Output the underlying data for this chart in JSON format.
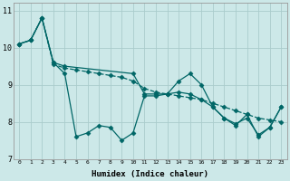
{
  "title": "",
  "xlabel": "Humidex (Indice chaleur)",
  "ylabel": "",
  "background_color": "#cce8e8",
  "grid_color": "#aacccc",
  "line_color": "#006666",
  "xlim": [
    -0.5,
    23.5
  ],
  "ylim": [
    7,
    11.2
  ],
  "xticks": [
    0,
    1,
    2,
    3,
    4,
    5,
    6,
    7,
    8,
    9,
    10,
    11,
    12,
    13,
    14,
    15,
    16,
    17,
    18,
    19,
    20,
    21,
    22,
    23
  ],
  "yticks": [
    7,
    8,
    9,
    10,
    11
  ],
  "line1_x": [
    0,
    1,
    2,
    3,
    4,
    5,
    6,
    7,
    8,
    9,
    10,
    11,
    12,
    13,
    14,
    15,
    16,
    17,
    18,
    19,
    20,
    21,
    22,
    23
  ],
  "line1_y": [
    10.1,
    10.2,
    10.8,
    9.6,
    9.3,
    7.6,
    7.7,
    7.9,
    7.85,
    7.5,
    7.7,
    8.7,
    8.7,
    8.75,
    9.1,
    9.3,
    9.0,
    8.4,
    8.1,
    7.9,
    8.2,
    7.6,
    7.85,
    8.4
  ],
  "line2_x": [
    0,
    1,
    2,
    3,
    4,
    10,
    11,
    12,
    13,
    14,
    15,
    16,
    17,
    18,
    19,
    20,
    21,
    22,
    23
  ],
  "line2_y": [
    10.1,
    10.2,
    10.8,
    9.6,
    9.5,
    9.3,
    8.75,
    8.75,
    8.75,
    8.8,
    8.75,
    8.6,
    8.4,
    8.1,
    7.95,
    8.1,
    7.65,
    7.85,
    8.4
  ],
  "line3_x": [
    0,
    1,
    2,
    3,
    4,
    5,
    6,
    7,
    8,
    9,
    10,
    11,
    12,
    13,
    14,
    15,
    16,
    17,
    18,
    19,
    20,
    21,
    22,
    23
  ],
  "line3_y": [
    10.1,
    10.2,
    10.8,
    9.55,
    9.45,
    9.4,
    9.35,
    9.3,
    9.25,
    9.2,
    9.1,
    8.9,
    8.8,
    8.75,
    8.7,
    8.65,
    8.6,
    8.5,
    8.4,
    8.3,
    8.2,
    8.1,
    8.05,
    8.0
  ]
}
